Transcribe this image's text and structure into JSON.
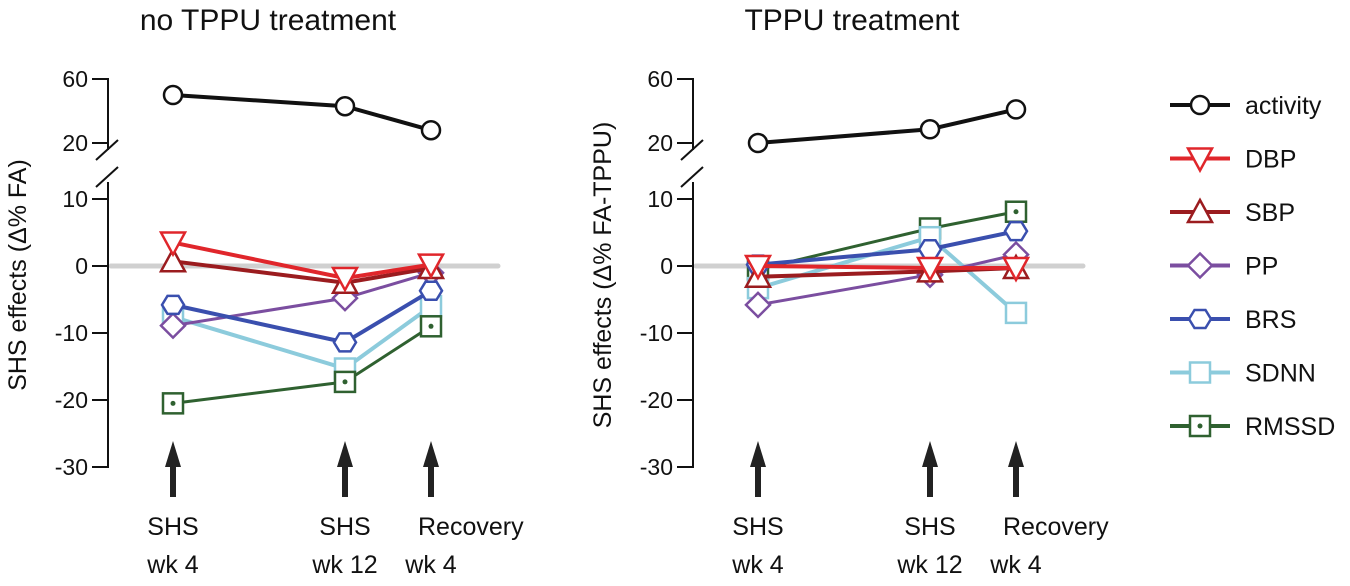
{
  "chart_data": {
    "type": "line",
    "x_categories": [
      [
        "SHS",
        "wk 4"
      ],
      [
        "SHS",
        "wk 12"
      ],
      [
        "Recovery",
        "wk 4"
      ]
    ],
    "y_ticks_upper": [
      60,
      20
    ],
    "y_ticks_lower": [
      10,
      0,
      -10,
      -20,
      -30
    ],
    "y_break": true,
    "legend_placement": "right",
    "legend": [
      "activity",
      "DBP",
      "SBP",
      "PP",
      "BRS",
      "SDNN",
      "RMSSD"
    ],
    "colors": {
      "activity": "#111111",
      "DBP": "#e0262b",
      "SBP": "#9b1c1f",
      "PP": "#7b4ea0",
      "BRS": "#3a4fae",
      "SDNN": "#8ccbdc",
      "RMSSD": "#2f6130",
      "zero_line": "#d0d0d0"
    },
    "markers": {
      "activity": "circle",
      "DBP": "triangle-down",
      "SBP": "triangle-up",
      "PP": "diamond",
      "BRS": "hexagon",
      "SDNN": "square",
      "RMSSD": "square-dot"
    },
    "panels": [
      {
        "title": "no TPPU treatment",
        "ylabel": "SHS effects (Δ% FA)",
        "series": [
          {
            "name": "activity",
            "values": [
              50,
              43,
              28
            ]
          },
          {
            "name": "SDNN",
            "values": [
              -7.6,
              -15.3,
              -6
            ]
          },
          {
            "name": "RMSSD",
            "values": [
              -20.5,
              -17.3,
              -9
            ]
          },
          {
            "name": "PP",
            "values": [
              -8.9,
              -4.8,
              -1
            ]
          },
          {
            "name": "BRS",
            "values": [
              -5.8,
              -11.4,
              -3.7
            ]
          },
          {
            "name": "SBP",
            "values": [
              0.7,
              -2.5,
              -0.3
            ]
          },
          {
            "name": "DBP",
            "values": [
              3.5,
              -1.8,
              0.2
            ]
          }
        ]
      },
      {
        "title": "TPPU treatment",
        "ylabel": "SHS effects (Δ% FA-TPPU)",
        "series": [
          {
            "name": "activity",
            "values": [
              20,
              28.6,
              41
            ]
          },
          {
            "name": "RMSSD",
            "values": [
              -0.5,
              5.6,
              8.1
            ]
          },
          {
            "name": "SDNN",
            "values": [
              -3.3,
              4.3,
              -7
            ]
          },
          {
            "name": "PP",
            "values": [
              -5.8,
              -1.3,
              1.7
            ]
          },
          {
            "name": "BRS",
            "values": [
              0.2,
              2.5,
              5.2
            ]
          },
          {
            "name": "SBP",
            "values": [
              -1.6,
              -0.8,
              -0.3
            ]
          },
          {
            "name": "DBP",
            "values": [
              0,
              -0.3,
              -0.3
            ]
          }
        ]
      }
    ]
  }
}
